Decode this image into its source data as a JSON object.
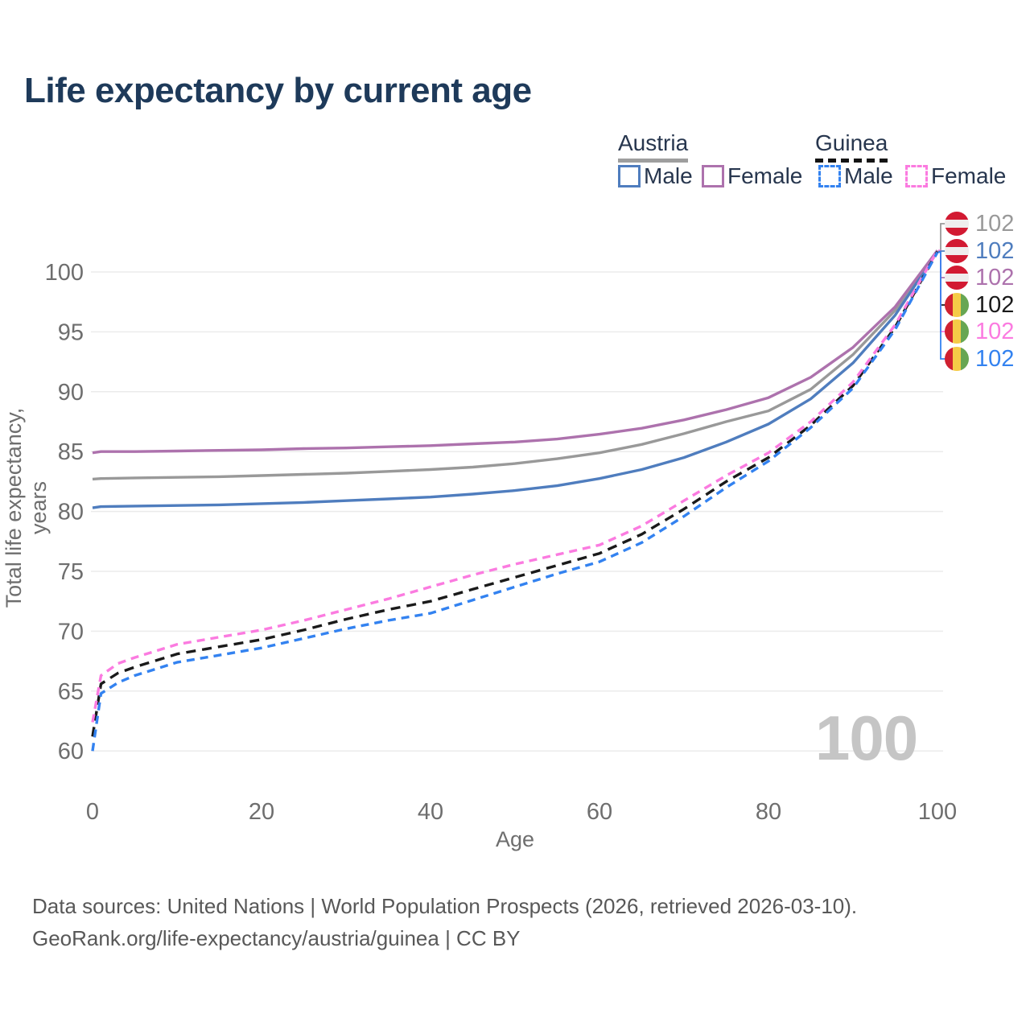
{
  "title": "Life expectancy by current age",
  "legend": {
    "groups": [
      {
        "label": "Austria",
        "line_style": "solid",
        "underline_color": "#9e9e9e",
        "items": [
          {
            "label": "Male",
            "color": "#4f7dbe",
            "dashed": false
          },
          {
            "label": "Female",
            "color": "#ad72ad",
            "dashed": false
          }
        ]
      },
      {
        "label": "Guinea",
        "line_style": "dashed",
        "underline_color": "#141414",
        "items": [
          {
            "label": "Male",
            "color": "#3382f0",
            "dashed": true
          },
          {
            "label": "Female",
            "color": "#fb7be0",
            "dashed": true
          }
        ]
      }
    ]
  },
  "chart_data": {
    "type": "line",
    "title": "Life expectancy by current age",
    "xlabel": "Age",
    "ylabel": "Total life expectancy, years",
    "xlim": [
      0,
      100
    ],
    "ylim": [
      58,
      103
    ],
    "xticks": [
      0,
      20,
      40,
      60,
      80,
      100
    ],
    "yticks": [
      60,
      65,
      70,
      75,
      80,
      85,
      90,
      95,
      100
    ],
    "grid": "horizontal",
    "legend_position": "top-right",
    "series": [
      {
        "name": "Austria (both sexes)",
        "color": "#999999",
        "dash": null,
        "end_label": "102",
        "points": [
          [
            0,
            82.7
          ],
          [
            1,
            82.75
          ],
          [
            5,
            82.8
          ],
          [
            10,
            82.85
          ],
          [
            15,
            82.9
          ],
          [
            20,
            83.0
          ],
          [
            25,
            83.1
          ],
          [
            30,
            83.2
          ],
          [
            35,
            83.35
          ],
          [
            40,
            83.5
          ],
          [
            45,
            83.7
          ],
          [
            50,
            84.0
          ],
          [
            55,
            84.4
          ],
          [
            60,
            84.9
          ],
          [
            65,
            85.6
          ],
          [
            70,
            86.5
          ],
          [
            75,
            87.5
          ],
          [
            80,
            88.4
          ],
          [
            85,
            90.2
          ],
          [
            90,
            93.1
          ],
          [
            95,
            96.8
          ],
          [
            100,
            101.75
          ]
        ]
      },
      {
        "name": "Austria Male",
        "color": "#4f7dbe",
        "dash": null,
        "end_label": "102",
        "points": [
          [
            0,
            80.3
          ],
          [
            1,
            80.4
          ],
          [
            5,
            80.45
          ],
          [
            10,
            80.5
          ],
          [
            15,
            80.55
          ],
          [
            20,
            80.65
          ],
          [
            25,
            80.75
          ],
          [
            30,
            80.9
          ],
          [
            35,
            81.05
          ],
          [
            40,
            81.2
          ],
          [
            45,
            81.45
          ],
          [
            50,
            81.75
          ],
          [
            55,
            82.15
          ],
          [
            60,
            82.75
          ],
          [
            65,
            83.5
          ],
          [
            70,
            84.5
          ],
          [
            75,
            85.8
          ],
          [
            80,
            87.3
          ],
          [
            85,
            89.4
          ],
          [
            90,
            92.4
          ],
          [
            95,
            96.4
          ],
          [
            100,
            101.7
          ]
        ]
      },
      {
        "name": "Austria Female",
        "color": "#ad72ad",
        "dash": null,
        "end_label": "102",
        "points": [
          [
            0,
            84.9
          ],
          [
            1,
            85.0
          ],
          [
            5,
            85.0
          ],
          [
            10,
            85.05
          ],
          [
            15,
            85.1
          ],
          [
            20,
            85.15
          ],
          [
            25,
            85.25
          ],
          [
            30,
            85.3
          ],
          [
            35,
            85.4
          ],
          [
            40,
            85.5
          ],
          [
            45,
            85.65
          ],
          [
            50,
            85.8
          ],
          [
            55,
            86.05
          ],
          [
            60,
            86.45
          ],
          [
            65,
            86.95
          ],
          [
            70,
            87.65
          ],
          [
            75,
            88.5
          ],
          [
            80,
            89.5
          ],
          [
            85,
            91.2
          ],
          [
            90,
            93.7
          ],
          [
            95,
            97.1
          ],
          [
            100,
            101.8
          ]
        ]
      },
      {
        "name": "Guinea (both sexes)",
        "color": "#1a1a1a",
        "dash": "12 8",
        "end_label": "102",
        "points": [
          [
            0,
            61.2
          ],
          [
            1,
            65.6
          ],
          [
            3,
            66.5
          ],
          [
            5,
            67.0
          ],
          [
            10,
            68.1
          ],
          [
            15,
            68.7
          ],
          [
            20,
            69.3
          ],
          [
            25,
            70.1
          ],
          [
            30,
            71.0
          ],
          [
            35,
            71.8
          ],
          [
            40,
            72.5
          ],
          [
            45,
            73.5
          ],
          [
            50,
            74.5
          ],
          [
            55,
            75.5
          ],
          [
            60,
            76.5
          ],
          [
            65,
            78.1
          ],
          [
            70,
            80.2
          ],
          [
            75,
            82.5
          ],
          [
            80,
            84.5
          ],
          [
            85,
            87.2
          ],
          [
            90,
            90.5
          ],
          [
            95,
            95.4
          ],
          [
            100,
            101.7
          ]
        ]
      },
      {
        "name": "Guinea Female",
        "color": "#fb7be0",
        "dash": "10 7",
        "end_label": "102",
        "points": [
          [
            0,
            62.4
          ],
          [
            1,
            66.3
          ],
          [
            3,
            67.3
          ],
          [
            5,
            67.8
          ],
          [
            10,
            68.9
          ],
          [
            15,
            69.5
          ],
          [
            20,
            70.1
          ],
          [
            25,
            70.9
          ],
          [
            30,
            71.8
          ],
          [
            35,
            72.7
          ],
          [
            40,
            73.7
          ],
          [
            45,
            74.7
          ],
          [
            50,
            75.6
          ],
          [
            55,
            76.4
          ],
          [
            60,
            77.2
          ],
          [
            65,
            78.8
          ],
          [
            70,
            80.9
          ],
          [
            75,
            83.0
          ],
          [
            80,
            84.9
          ],
          [
            85,
            87.5
          ],
          [
            90,
            90.8
          ],
          [
            95,
            95.6
          ],
          [
            100,
            101.8
          ]
        ]
      },
      {
        "name": "Guinea Male",
        "color": "#3382f0",
        "dash": "10 7",
        "end_label": "102",
        "points": [
          [
            0,
            60.0
          ],
          [
            1,
            64.8
          ],
          [
            3,
            65.7
          ],
          [
            5,
            66.3
          ],
          [
            10,
            67.4
          ],
          [
            15,
            68.0
          ],
          [
            20,
            68.6
          ],
          [
            25,
            69.4
          ],
          [
            30,
            70.2
          ],
          [
            35,
            70.9
          ],
          [
            40,
            71.5
          ],
          [
            45,
            72.6
          ],
          [
            50,
            73.7
          ],
          [
            55,
            74.8
          ],
          [
            60,
            75.8
          ],
          [
            65,
            77.4
          ],
          [
            70,
            79.6
          ],
          [
            75,
            82.0
          ],
          [
            80,
            84.2
          ],
          [
            85,
            87.0
          ],
          [
            90,
            90.3
          ],
          [
            95,
            95.2
          ],
          [
            100,
            101.65
          ]
        ]
      }
    ]
  },
  "right_labels": [
    {
      "value": "102",
      "flag": "austria",
      "color": "#999999",
      "series": 0
    },
    {
      "value": "102",
      "flag": "austria",
      "color": "#4f7dbe",
      "series": 1
    },
    {
      "value": "102",
      "flag": "austria",
      "color": "#ad72ad",
      "series": 2
    },
    {
      "value": "102",
      "flag": "guinea",
      "color": "#1a1a1a",
      "series": 3
    },
    {
      "value": "102",
      "flag": "guinea",
      "color": "#fb7be0",
      "series": 4
    },
    {
      "value": "102",
      "flag": "guinea",
      "color": "#3382f0",
      "series": 5
    }
  ],
  "watermark": "100",
  "footer": {
    "line1": "Data sources: United Nations | World Population Prospects (2026, retrieved 2026-03-10).",
    "line2": "GeoRank.org/life-expectancy/austria/guinea | CC BY"
  }
}
